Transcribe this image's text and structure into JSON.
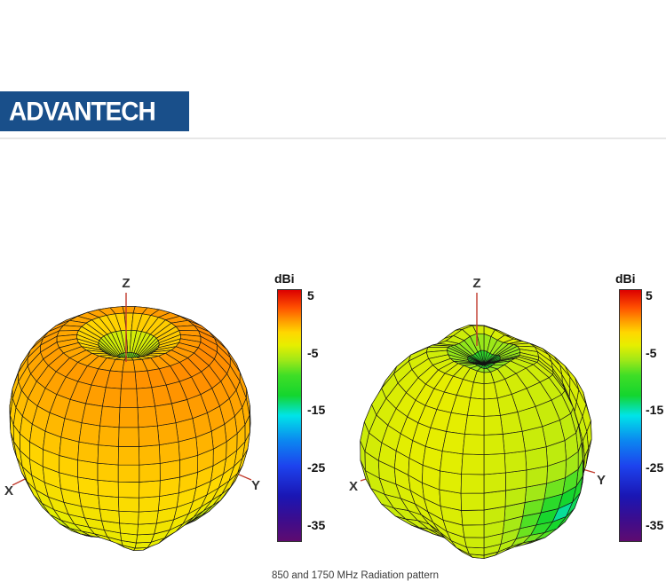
{
  "header": {
    "logo_text": "ADVANTECH",
    "logo_bg": "#194F8A"
  },
  "caption": "850 and 1750 MHz Radiation pattern",
  "colormap": {
    "vmin": -38,
    "vmax": 6,
    "stops": [
      [
        0.0,
        "#5E0B70"
      ],
      [
        0.09,
        "#3A0D8F"
      ],
      [
        0.18,
        "#1A16B4"
      ],
      [
        0.3,
        "#1D43EE"
      ],
      [
        0.4,
        "#0B87F0"
      ],
      [
        0.5,
        "#00E4E8"
      ],
      [
        0.58,
        "#14D52E"
      ],
      [
        0.66,
        "#3FDE26"
      ],
      [
        0.72,
        "#9FE818"
      ],
      [
        0.78,
        "#E6EE00"
      ],
      [
        0.83,
        "#FFD800"
      ],
      [
        0.88,
        "#FF9800"
      ],
      [
        0.93,
        "#FF5000"
      ],
      [
        1.0,
        "#DC0000"
      ]
    ]
  },
  "chart_data": [
    {
      "type": "surface",
      "title": "3D radiation pattern (lower band, ~850 MHz)",
      "axes": {
        "x": "X",
        "y": "Y",
        "z": "Z"
      },
      "colorbar": {
        "title": "dBi",
        "ticks": [
          5,
          -5,
          -15,
          -25,
          -35
        ],
        "tick_labels": [
          "5",
          "-5",
          "-15",
          "-25",
          "-35"
        ],
        "scale_top_dbi": 6,
        "scale_bottom_dbi": -38
      },
      "gain_summary": {
        "shape": "toroidal apple-shaped pattern with null (crater) on +Z axis",
        "upper_body_dbi_approx": 2,
        "mid_body_dbi_approx": 0,
        "lower_body_dbi_approx": -4,
        "top_null_dbi_approx": -8
      },
      "render": {
        "center": [
          145,
          182
        ],
        "scale": 135,
        "az": 45,
        "el": 27,
        "theta_steps": 20,
        "phi_steps": 36,
        "mesh_color": "#141414",
        "axis_color": "#C0392B",
        "shape": {
          "base": 0.98,
          "zscale": 1.0,
          "shoulder": [
            0.07,
            0.85,
            0.7
          ],
          "dimple": [
            0.42,
            0.36
          ],
          "lump_profile": "bottom",
          "lumps": [
            [
              0.035,
              5,
              0.8,
              0.7
            ],
            [
              0.025,
              3,
              -1.2,
              2.1
            ]
          ]
        },
        "gain": {
          "base": -1.2,
          "zcoef": 2.9,
          "phi": [
            0.5,
            1,
            -0.8
          ],
          "dimple": [
            9.5,
            0.35
          ],
          "patches": [
            [
              2.8,
              2.35,
              0.3,
              -0.5,
              0.5
            ],
            [
              2.6,
              2.4,
              0.3,
              1.9,
              0.5
            ]
          ],
          "bottom": [
            0,
            1
          ]
        },
        "axes": {
          "z_line": [
            [
              142,
              30
            ],
            [
              142,
              108
            ]
          ],
          "x_end": [
            14,
            247
          ],
          "y_end": [
            283,
            241
          ],
          "labels": {
            "z": [
              142,
              24
            ],
            "x": [
              10,
              258
            ],
            "y": [
              288,
              252
            ]
          }
        }
      }
    },
    {
      "type": "surface",
      "title": "3D radiation pattern (upper band, ~1750 MHz)",
      "axes": {
        "x": "X",
        "y": "Y",
        "z": "Z"
      },
      "colorbar": {
        "title": "dBi",
        "ticks": [
          5,
          -5,
          -15,
          -25,
          -35
        ],
        "tick_labels": [
          "5",
          "-5",
          "-15",
          "-25",
          "-35"
        ],
        "scale_top_dbi": 6,
        "scale_bottom_dbi": -38
      },
      "gain_summary": {
        "shape": "quasi-omnidirectional lumpy pattern with small null on +Z axis",
        "body_dbi_approx": -5,
        "cyan_patch_dbi_approx": -14,
        "bottom_dbi_approx": -3,
        "top_null_dbi_approx": -11
      },
      "render": {
        "center": [
          155,
          197
        ],
        "scale": 136,
        "az": 45,
        "el": 27,
        "theta_steps": 18,
        "phi_steps": 32,
        "mesh_color": "#141414",
        "axis_color": "#C0392B",
        "shape": {
          "base": 0.93,
          "zscale": 1.0,
          "shoulder": [
            0,
            1,
            1
          ],
          "dimple": [
            0.22,
            0.3
          ],
          "lump_profile": "all",
          "lumps": [
            [
              0.055,
              3,
              1.5,
              1.8
            ],
            [
              0.05,
              5,
              -0.8,
              0.4
            ],
            [
              0.04,
              2,
              3.2,
              2.6
            ]
          ]
        },
        "gain": {
          "base": -4.6,
          "zcoef": 0.6,
          "phi": [
            0.8,
            2,
            1.2
          ],
          "dimple": [
            7,
            0.26
          ],
          "patches": [
            [
              9,
              2.0,
              0.33,
              1.7,
              0.42
            ]
          ],
          "bottom": [
            2.2,
            0.38
          ]
        },
        "axes": {
          "z_line": [
            [
              147,
              30
            ],
            [
              147,
              90
            ]
          ],
          "x_end": [
            16,
            242
          ],
          "y_end": [
            280,
            233
          ],
          "labels": {
            "z": [
              147,
              24
            ],
            "x": [
              8,
              253
            ],
            "y": [
              287,
              246
            ]
          }
        }
      }
    }
  ]
}
